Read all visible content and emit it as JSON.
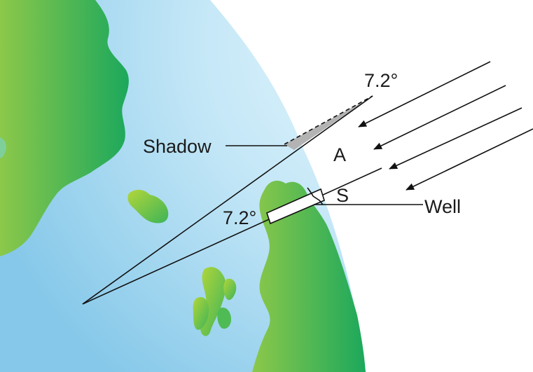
{
  "labels": {
    "top_angle": "7.2°",
    "center_angle": "7.2°",
    "shadow": "Shadow",
    "arc_length": "A",
    "distance": "S",
    "well": "Well"
  },
  "colors": {
    "ocean_light": "#d8f0fa",
    "ocean_dark": "#8ccbea",
    "land_light": "#86c64a",
    "land_dark": "#1faa5a",
    "shadow_fill": "#b3b3b3",
    "line": "#111111"
  },
  "icons": {
    "sun_rays": "arrow-left-down"
  }
}
